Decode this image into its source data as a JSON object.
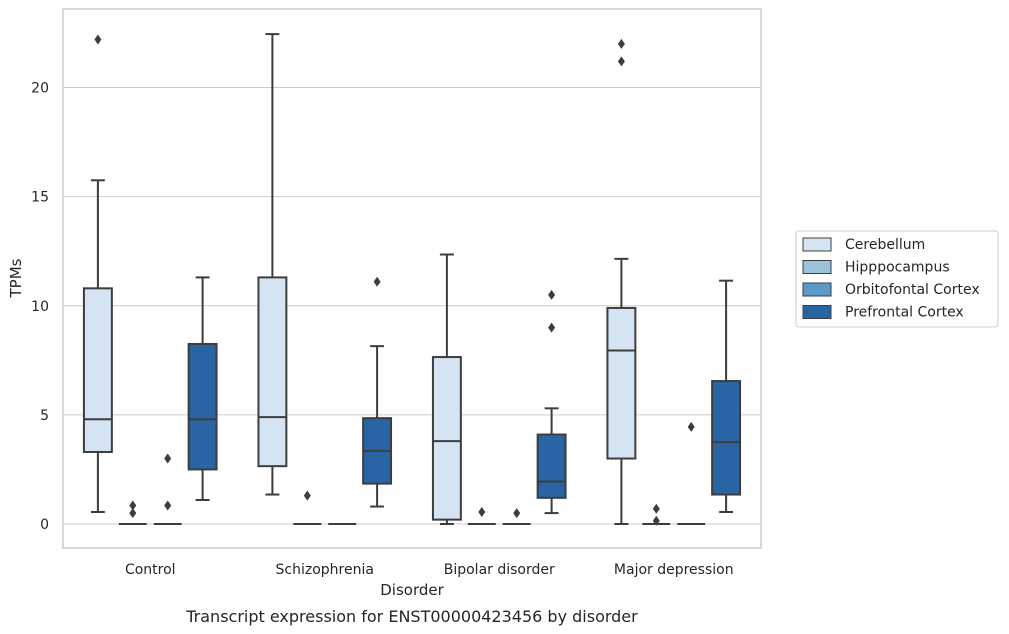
{
  "caption": "Transcript expression for ENST00000423456 by disorder",
  "chart_data": {
    "type": "box",
    "xlabel": "Disorder",
    "ylabel": "TPMs",
    "categories": [
      "Control",
      "Schizophrenia",
      "Bipolar disorder",
      "Major depression"
    ],
    "ylim": [
      -1.1,
      23.6
    ],
    "yticks": [
      0,
      5,
      10,
      15,
      20
    ],
    "grid": "horizontal",
    "legend_position": "right",
    "series": [
      {
        "name": "Cerebellum",
        "color": "#d4e4f3",
        "boxes": [
          {
            "whislo": 0.55,
            "q1": 3.3,
            "median": 4.8,
            "q3": 10.8,
            "whishi": 15.75,
            "fliers": [
              22.2
            ]
          },
          {
            "whislo": 1.35,
            "q1": 2.65,
            "median": 4.9,
            "q3": 11.3,
            "whishi": 22.45,
            "fliers": []
          },
          {
            "whislo": 0.0,
            "q1": 0.2,
            "median": 3.8,
            "q3": 7.65,
            "whishi": 12.35,
            "fliers": []
          },
          {
            "whislo": 0.0,
            "q1": 3.0,
            "median": 7.95,
            "q3": 9.9,
            "whishi": 12.15,
            "fliers": [
              21.2,
              22.0
            ]
          }
        ]
      },
      {
        "name": "Hipppocampus",
        "color": "#9ac3dc",
        "boxes": [
          {
            "whislo": 0.0,
            "q1": 0.0,
            "median": 0.0,
            "q3": 0.0,
            "whishi": 0.0,
            "fliers": [
              0.5,
              0.85
            ]
          },
          {
            "whislo": 0.0,
            "q1": 0.0,
            "median": 0.0,
            "q3": 0.0,
            "whishi": 0.0,
            "fliers": [
              1.3
            ]
          },
          {
            "whislo": 0.0,
            "q1": 0.0,
            "median": 0.0,
            "q3": 0.0,
            "whishi": 0.0,
            "fliers": [
              0.55
            ]
          },
          {
            "whislo": 0.0,
            "q1": 0.0,
            "median": 0.0,
            "q3": 0.0,
            "whishi": 0.0,
            "fliers": [
              0.15,
              0.7
            ]
          }
        ]
      },
      {
        "name": "Orbitofontal Cortex",
        "color": "#5a9bc9",
        "boxes": [
          {
            "whislo": 0.0,
            "q1": 0.0,
            "median": 0.0,
            "q3": 0.0,
            "whishi": 0.0,
            "fliers": [
              0.85,
              3.0
            ]
          },
          {
            "whislo": 0.0,
            "q1": 0.0,
            "median": 0.0,
            "q3": 0.0,
            "whishi": 0.0,
            "fliers": []
          },
          {
            "whislo": 0.0,
            "q1": 0.0,
            "median": 0.0,
            "q3": 0.0,
            "whishi": 0.0,
            "fliers": [
              0.5
            ]
          },
          {
            "whislo": 0.0,
            "q1": 0.0,
            "median": 0.0,
            "q3": 0.0,
            "whishi": 0.0,
            "fliers": [
              4.45
            ]
          }
        ]
      },
      {
        "name": "Prefrontal Cortex",
        "color": "#2965a4",
        "boxes": [
          {
            "whislo": 1.1,
            "q1": 2.5,
            "median": 4.8,
            "q3": 8.25,
            "whishi": 11.3,
            "fliers": []
          },
          {
            "whislo": 0.8,
            "q1": 1.85,
            "median": 3.35,
            "q3": 4.85,
            "whishi": 8.15,
            "fliers": [
              11.1
            ]
          },
          {
            "whislo": 0.5,
            "q1": 1.2,
            "median": 1.95,
            "q3": 4.1,
            "whishi": 5.3,
            "fliers": [
              9.0,
              10.5
            ]
          },
          {
            "whislo": 0.55,
            "q1": 1.35,
            "median": 3.75,
            "q3": 6.55,
            "whishi": 11.15,
            "fliers": []
          }
        ]
      }
    ]
  }
}
